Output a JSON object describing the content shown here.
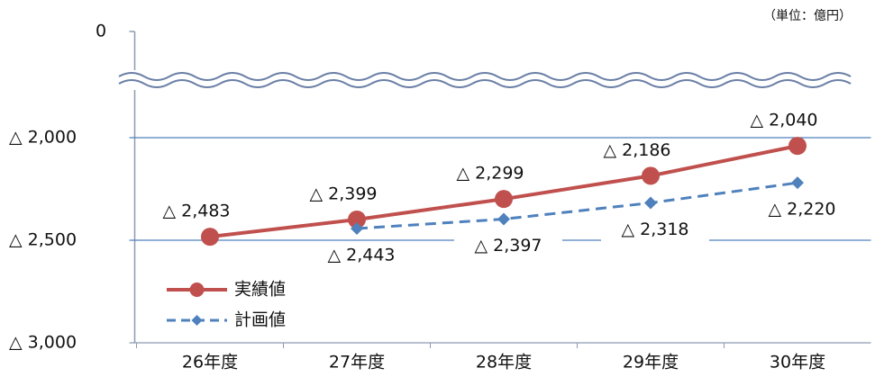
{
  "chart_data": {
    "type": "line",
    "unit_note": "（単位：億円）",
    "categories": [
      "26年度",
      "27年度",
      "28年度",
      "29年度",
      "30年度"
    ],
    "series": [
      {
        "name": "実績値",
        "color": "#c0504d",
        "marker": "circle",
        "dashed": false,
        "values": [
          -2483,
          -2399,
          -2299,
          -2186,
          -2040
        ],
        "value_labels": [
          "△ 2,483",
          "△ 2,399",
          "△ 2,299",
          "△ 2,186",
          "△ 2,040"
        ]
      },
      {
        "name": "計画値",
        "color": "#4f81bd",
        "marker": "diamond",
        "dashed": true,
        "values": [
          null,
          -2443,
          -2397,
          -2318,
          -2220
        ],
        "value_labels": [
          null,
          "△ 2,443",
          "△ 2,397",
          "△ 2,318",
          "△ 2,220"
        ]
      }
    ],
    "ylim": [
      -3000,
      0
    ],
    "axis_break": true,
    "yticks": [
      {
        "value": 0,
        "label": "0"
      },
      {
        "value": -2000,
        "label": "△ 2,000"
      },
      {
        "value": -2500,
        "label": "△ 2,500"
      },
      {
        "value": -3000,
        "label": "△ 3,000"
      }
    ],
    "grid": true
  }
}
